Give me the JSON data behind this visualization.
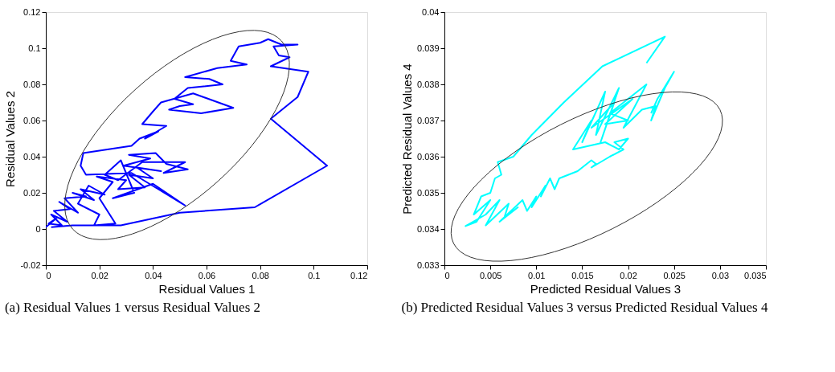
{
  "chart_data": [
    {
      "type": "line",
      "xlabel": "Residual Values 1",
      "ylabel": "Residual Values 2",
      "xlim": [
        0,
        0.12
      ],
      "ylim": [
        -0.02,
        0.12
      ],
      "xticks": [
        0,
        0.02,
        0.04,
        0.06,
        0.08,
        0.1,
        0.12
      ],
      "yticks": [
        -0.02,
        0,
        0.02,
        0.04,
        0.06,
        0.08,
        0.1,
        0.12
      ],
      "grid": false,
      "marker": "none",
      "line_style": "solid",
      "annotations": [
        "(a) Residual Values 1 versus Residual Values 2"
      ],
      "series": [
        {
          "color": "#0000ff",
          "x": [
            0.0,
            0.004,
            0.001,
            0.006,
            0.002,
            0.008,
            0.003,
            0.009,
            0.005,
            0.012,
            0.007,
            0.015,
            0.01,
            0.018,
            0.013,
            0.022,
            0.016,
            0.012,
            0.02,
            0.018,
            0.026,
            0.02,
            0.025,
            0.019,
            0.03,
            0.027,
            0.037,
            0.031,
            0.04,
            0.034,
            0.043,
            0.029,
            0.039,
            0.031,
            0.041,
            0.045,
            0.053,
            0.044,
            0.052,
            0.036,
            0.027,
            0.022,
            0.028,
            0.033,
            0.025,
            0.04,
            0.052,
            0.042,
            0.032,
            0.015,
            0.013,
            0.014,
            0.032,
            0.035,
            0.042,
            0.037,
            0.045,
            0.036,
            0.04,
            0.043,
            0.055,
            0.07,
            0.058,
            0.046,
            0.05,
            0.055,
            0.048,
            0.053,
            0.066,
            0.061,
            0.052,
            0.064,
            0.075,
            0.069,
            0.072,
            0.08,
            0.083,
            0.088,
            0.094,
            0.085,
            0.087,
            0.091,
            0.084,
            0.098,
            0.094,
            0.084,
            0.105,
            0.078,
            0.05,
            0.028,
            0.01,
            0.002
          ],
          "values": [
            0.001,
            0.006,
            0.003,
            0.002,
            0.008,
            0.004,
            0.01,
            0.011,
            0.015,
            0.009,
            0.017,
            0.018,
            0.02,
            0.016,
            0.022,
            0.019,
            0.024,
            0.014,
            0.008,
            0.002,
            0.003,
            0.017,
            0.026,
            0.029,
            0.027,
            0.022,
            0.023,
            0.03,
            0.028,
            0.034,
            0.032,
            0.035,
            0.039,
            0.041,
            0.042,
            0.036,
            0.033,
            0.031,
            0.037,
            0.037,
            0.027,
            0.03,
            0.038,
            0.02,
            0.017,
            0.025,
            0.013,
            0.022,
            0.031,
            0.03,
            0.035,
            0.042,
            0.046,
            0.05,
            0.054,
            0.05,
            0.057,
            0.058,
            0.065,
            0.07,
            0.075,
            0.067,
            0.064,
            0.066,
            0.068,
            0.069,
            0.072,
            0.078,
            0.08,
            0.083,
            0.084,
            0.089,
            0.091,
            0.093,
            0.101,
            0.103,
            0.105,
            0.102,
            0.102,
            0.101,
            0.096,
            0.095,
            0.09,
            0.087,
            0.073,
            0.061,
            0.035,
            0.012,
            0.009,
            0.002,
            0.002,
            0.001
          ]
        }
      ]
    },
    {
      "type": "line",
      "xlabel": "Predicted Residual Values 3",
      "ylabel": "Predicted Residual Values 4",
      "xlim": [
        0,
        0.035
      ],
      "ylim": [
        0.033,
        0.04
      ],
      "xticks": [
        0,
        0.005,
        0.01,
        0.015,
        0.02,
        0.025,
        0.03,
        0.035
      ],
      "yticks": [
        0.033,
        0.034,
        0.035,
        0.036,
        0.037,
        0.038,
        0.039,
        0.04
      ],
      "grid": false,
      "marker": "none",
      "line_style": "solid",
      "annotations": [
        "(b) Predicted Residual Values 3 versus Predicted Residual Values 4"
      ],
      "series": [
        {
          "color": "#00ffff",
          "x": [
            0.022,
            0.024,
            0.0172,
            0.013,
            0.0095,
            0.0075,
            0.0058,
            0.0062,
            0.0055,
            0.005,
            0.004,
            0.0032,
            0.005,
            0.0035,
            0.0023,
            0.0045,
            0.006,
            0.0045,
            0.007,
            0.0065,
            0.008,
            0.006,
            0.0085,
            0.009,
            0.01,
            0.0095,
            0.011,
            0.0105,
            0.0115,
            0.012,
            0.0125,
            0.0145,
            0.016,
            0.0165,
            0.016,
            0.018,
            0.0195,
            0.0185,
            0.02,
            0.019,
            0.0175,
            0.014,
            0.016,
            0.015,
            0.0175,
            0.0165,
            0.019,
            0.017,
            0.0185,
            0.016,
            0.0205,
            0.0175,
            0.02,
            0.018,
            0.022,
            0.0195,
            0.0215,
            0.023,
            0.0225,
            0.0235,
            0.024,
            0.025,
            0.0232,
            0.0225
          ],
          "values": [
            0.03859,
            0.03932,
            0.0385,
            0.0375,
            0.0366,
            0.036,
            0.03585,
            0.0355,
            0.0354,
            0.035,
            0.0349,
            0.0344,
            0.0348,
            0.0342,
            0.03408,
            0.0344,
            0.0348,
            0.0341,
            0.0347,
            0.0343,
            0.0346,
            0.0342,
            0.0348,
            0.0345,
            0.0349,
            0.0346,
            0.0352,
            0.0349,
            0.0354,
            0.0351,
            0.0354,
            0.0356,
            0.0359,
            0.0358,
            0.0357,
            0.036,
            0.0362,
            0.0364,
            0.0365,
            0.0362,
            0.0364,
            0.0362,
            0.037,
            0.0364,
            0.0378,
            0.0366,
            0.0379,
            0.0364,
            0.0375,
            0.0368,
            0.0376,
            0.0369,
            0.037,
            0.0372,
            0.038,
            0.0368,
            0.0373,
            0.0374,
            0.037,
            0.0376,
            0.0379,
            0.03835,
            0.0376,
            0.0372
          ]
        }
      ]
    }
  ]
}
